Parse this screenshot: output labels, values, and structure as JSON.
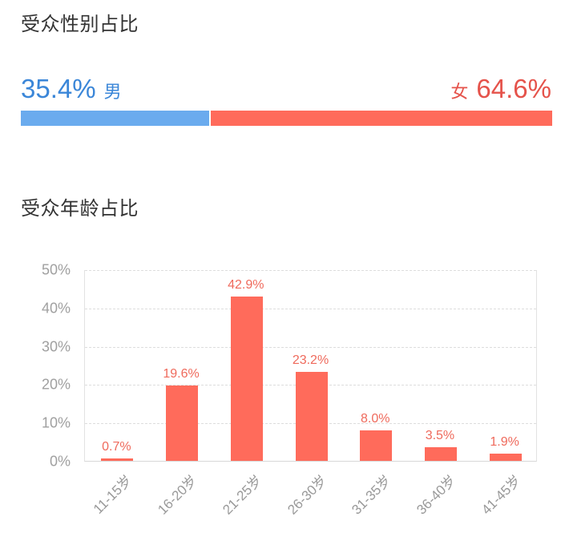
{
  "gender": {
    "title": "受众性别占比",
    "male": {
      "label": "男",
      "pct_text": "35.4%",
      "value": 35.4,
      "color": "#6aabee",
      "text_color": "#3a86d8"
    },
    "female": {
      "label": "女",
      "pct_text": "64.6%",
      "value": 64.6,
      "color": "#ff6b5b",
      "text_color": "#e5534b"
    }
  },
  "age": {
    "title": "受众年龄占比"
  },
  "chart_data": [
    {
      "type": "bar",
      "title": "受众性别占比",
      "orientation": "horizontal-stacked",
      "categories": [
        "男",
        "女"
      ],
      "values": [
        35.4,
        64.6
      ],
      "colors": [
        "#6aabee",
        "#ff6b5b"
      ],
      "unit": "%"
    },
    {
      "type": "bar",
      "title": "受众年龄占比",
      "xlabel": "",
      "ylabel": "",
      "categories": [
        "11-15岁",
        "16-20岁",
        "21-25岁",
        "26-30岁",
        "31-35岁",
        "36-40岁",
        "41-45岁"
      ],
      "values": [
        0.7,
        19.6,
        42.9,
        23.2,
        8.0,
        3.5,
        1.9
      ],
      "value_labels": [
        "0.7%",
        "19.6%",
        "42.9%",
        "23.2%",
        "8.0%",
        "3.5%",
        "1.9%"
      ],
      "yticks": [
        "0%",
        "10%",
        "20%",
        "30%",
        "40%",
        "50%"
      ],
      "ylim": [
        0,
        50
      ],
      "grid": true,
      "grid_style": "dashed",
      "bar_color": "#ff6b5b",
      "label_color": "#ef6a5c",
      "x_label_rotation": -45,
      "legend": false
    }
  ]
}
